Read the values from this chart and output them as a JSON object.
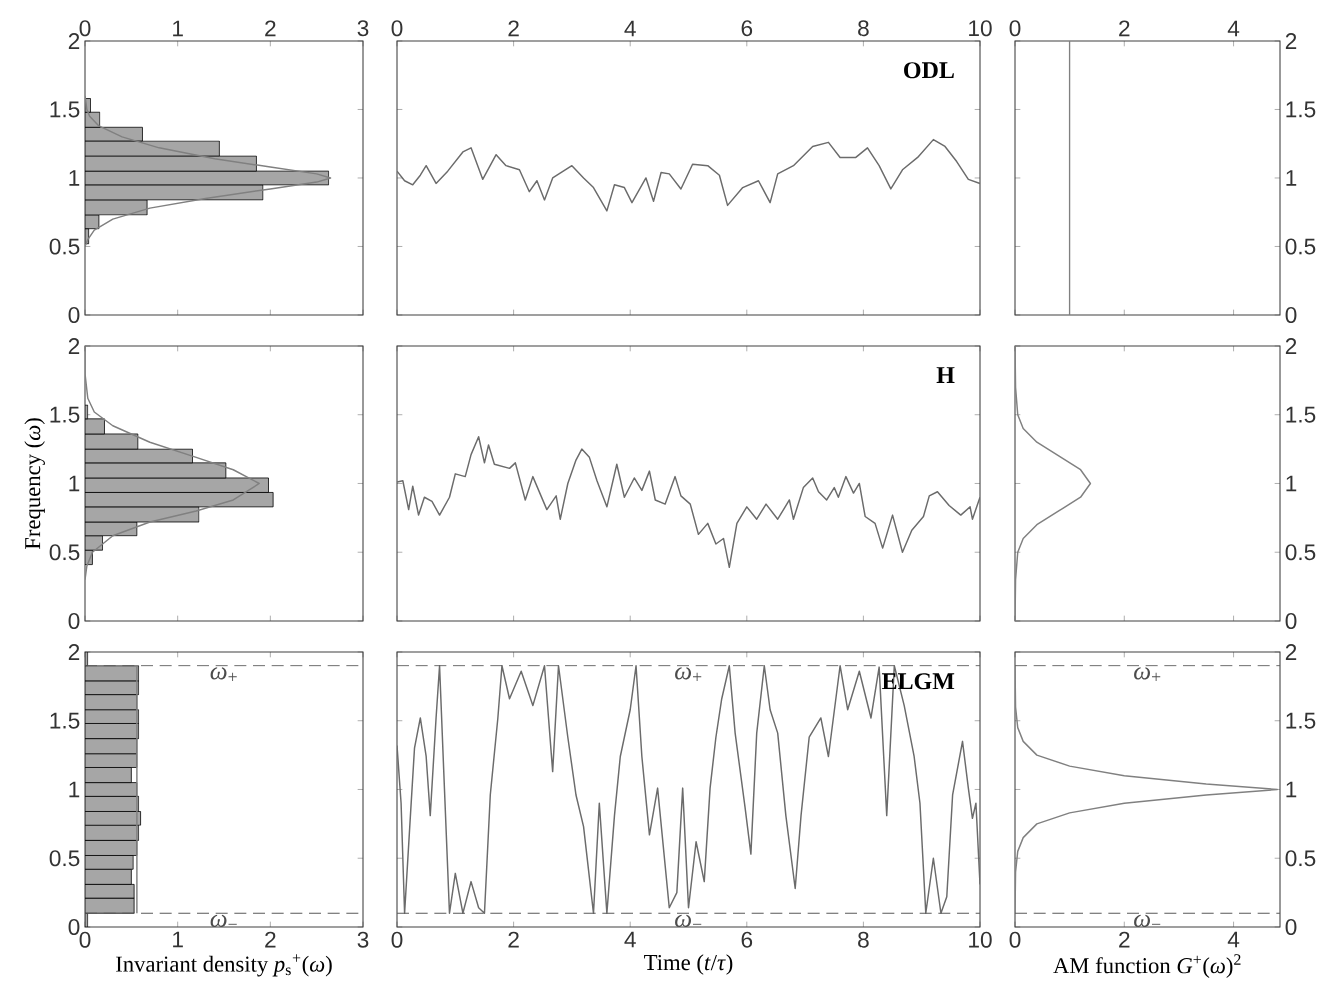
{
  "chart_data": [
    {
      "type": "histogram",
      "orientation": "horizontal",
      "xlim": [
        0,
        3
      ],
      "xticks": [
        0,
        1,
        2,
        3
      ],
      "ylim": [
        0,
        2
      ],
      "yticks": [
        0,
        0.5,
        1,
        1.5,
        2
      ],
      "color": "#a6a6a6",
      "bins": [
        0.52,
        0.63,
        0.73,
        0.84,
        0.95,
        1.05,
        1.16,
        1.27,
        1.37,
        1.48,
        1.58
      ],
      "values": [
        0.04,
        0.15,
        0.67,
        1.92,
        2.63,
        1.85,
        1.45,
        0.62,
        0.16,
        0.06
      ],
      "series": [
        {
          "type": "line",
          "color": "#808080",
          "values": [
            0,
            0.03,
            0.1,
            0.3,
            0.7,
            1.3,
            2.0,
            2.5,
            2.65,
            2.5,
            2.0,
            1.4,
            0.8,
            0.4,
            0.15,
            0.05,
            0.02,
            0
          ],
          "x": [
            0.5,
            0.55,
            0.62,
            0.7,
            0.78,
            0.85,
            0.92,
            0.97,
            1.0,
            1.03,
            1.08,
            1.14,
            1.22,
            1.3,
            1.38,
            1.45,
            1.5,
            1.6
          ]
        }
      ]
    },
    {
      "type": "line",
      "xlim": [
        0,
        10
      ],
      "xticks": [
        0,
        2,
        4,
        6,
        8,
        10
      ],
      "ylim": [
        0,
        2
      ],
      "yticks": [
        0,
        0.5,
        1,
        1.5,
        2
      ],
      "tick_labels": "x",
      "annotations": [
        "**ODL**"
      ],
      "color": "#6b6b6b",
      "x": [
        0,
        0.13,
        0.27,
        0.4,
        0.5,
        0.67,
        0.87,
        1.13,
        1.27,
        1.47,
        1.7,
        1.87,
        2.1,
        2.27,
        2.4,
        2.53,
        2.67,
        3.0,
        3.2,
        3.37,
        3.6,
        3.73,
        3.9,
        4.03,
        4.27,
        4.4,
        4.53,
        4.67,
        4.87,
        5.07,
        5.33,
        5.53,
        5.67,
        5.93,
        6.2,
        6.4,
        6.53,
        6.8,
        7.13,
        7.4,
        7.6,
        7.87,
        8.07,
        8.27,
        8.47,
        8.67,
        8.93,
        9.2,
        9.4,
        9.6,
        9.8,
        10
      ],
      "values": [
        1.05,
        0.98,
        0.95,
        1.02,
        1.09,
        0.96,
        1.05,
        1.19,
        1.22,
        0.99,
        1.17,
        1.09,
        1.06,
        0.9,
        0.98,
        0.84,
        1.0,
        1.09,
        1.0,
        0.93,
        0.76,
        0.95,
        0.93,
        0.82,
        1.0,
        0.83,
        1.04,
        1.03,
        0.92,
        1.1,
        1.09,
        1.02,
        0.8,
        0.93,
        0.98,
        0.82,
        1.03,
        1.09,
        1.23,
        1.26,
        1.15,
        1.15,
        1.22,
        1.09,
        0.92,
        1.06,
        1.15,
        1.28,
        1.23,
        1.12,
        0.99,
        0.96
      ]
    },
    {
      "type": "line",
      "xlim": [
        0,
        4.85
      ],
      "xticks": [
        0,
        2,
        4
      ],
      "ylim": [
        0,
        2
      ],
      "yticks": [
        0,
        0.5,
        1,
        1.5,
        2
      ],
      "series": [
        {
          "color": "#808080",
          "x": [
            1,
            1
          ],
          "values": [
            0,
            2
          ]
        }
      ]
    },
    {
      "type": "histogram",
      "orientation": "horizontal",
      "xlim": [
        0,
        3
      ],
      "xticks": [
        0,
        1,
        2,
        3
      ],
      "ylim": [
        0,
        2
      ],
      "yticks": [
        0,
        0.5,
        1,
        1.5,
        2
      ],
      "tick_labels": "y",
      "ylabel": "Frequency (*ω*)",
      "color": "#a6a6a6",
      "bins": [
        0.41,
        0.515,
        0.62,
        0.72,
        0.83,
        0.935,
        1.04,
        1.15,
        1.25,
        1.36,
        1.47,
        1.57
      ],
      "values": [
        0.08,
        0.19,
        0.56,
        1.23,
        2.03,
        1.98,
        1.52,
        1.16,
        0.57,
        0.21,
        0.03
      ],
      "series": [
        {
          "type": "line",
          "color": "#808080",
          "values": [
            0,
            0.02,
            0.08,
            0.3,
            0.7,
            1.2,
            1.6,
            1.88,
            1.6,
            1.2,
            0.7,
            0.3,
            0.1,
            0.03,
            0,
            0
          ],
          "x": [
            0.3,
            0.4,
            0.5,
            0.62,
            0.72,
            0.8,
            0.88,
            1.0,
            1.1,
            1.19,
            1.3,
            1.42,
            1.52,
            1.62,
            1.8,
            2
          ]
        }
      ]
    },
    {
      "type": "line",
      "xlim": [
        0,
        10
      ],
      "xticks": [
        0,
        2,
        4,
        6,
        8,
        10
      ],
      "ylim": [
        0,
        2
      ],
      "yticks": [
        0,
        0.5,
        1,
        1.5,
        2
      ],
      "tick_labels": false,
      "annotations": [
        "**H**"
      ],
      "color": "#6b6b6b",
      "x": [
        0,
        0.1,
        0.2,
        0.27,
        0.37,
        0.47,
        0.6,
        0.73,
        0.9,
        1.0,
        1.17,
        1.27,
        1.4,
        1.5,
        1.57,
        1.67,
        1.93,
        2.03,
        2.2,
        2.33,
        2.47,
        2.57,
        2.73,
        2.8,
        2.93,
        3.07,
        3.17,
        3.3,
        3.43,
        3.6,
        3.77,
        3.9,
        4.07,
        4.2,
        4.33,
        4.43,
        4.6,
        4.77,
        4.87,
        5.03,
        5.17,
        5.33,
        5.47,
        5.6,
        5.7,
        5.83,
        6.0,
        6.17,
        6.33,
        6.53,
        6.73,
        6.8,
        6.97,
        7.13,
        7.23,
        7.37,
        7.5,
        7.57,
        7.7,
        7.83,
        7.93,
        8.03,
        8.2,
        8.33,
        8.5,
        8.67,
        8.83,
        9.03,
        9.13,
        9.27,
        9.47,
        9.67,
        9.83,
        9.87,
        10
      ],
      "values": [
        1.01,
        1.02,
        0.81,
        0.98,
        0.77,
        0.9,
        0.87,
        0.77,
        0.9,
        1.07,
        1.05,
        1.21,
        1.34,
        1.15,
        1.28,
        1.14,
        1.11,
        1.15,
        0.88,
        1.05,
        0.91,
        0.81,
        0.91,
        0.74,
        1.0,
        1.17,
        1.25,
        1.19,
        1.02,
        0.83,
        1.14,
        0.9,
        1.04,
        0.95,
        1.09,
        0.88,
        0.85,
        1.05,
        0.91,
        0.85,
        0.63,
        0.71,
        0.56,
        0.6,
        0.39,
        0.71,
        0.83,
        0.74,
        0.85,
        0.74,
        0.88,
        0.74,
        0.97,
        1.04,
        0.94,
        0.88,
        0.97,
        0.9,
        1.05,
        0.93,
        1.0,
        0.76,
        0.71,
        0.53,
        0.77,
        0.5,
        0.66,
        0.76,
        0.91,
        0.94,
        0.84,
        0.77,
        0.83,
        0.74,
        0.9
      ]
    },
    {
      "type": "line",
      "xlim": [
        0,
        4.85
      ],
      "xticks": [
        0,
        2,
        4
      ],
      "ylim": [
        0,
        2
      ],
      "yticks": [
        0,
        0.5,
        1,
        1.5,
        2
      ],
      "tick_labels": "y",
      "series": [
        {
          "color": "#808080",
          "x": [
            0,
            0.01,
            0.05,
            0.15,
            0.4,
            0.8,
            1.2,
            1.38,
            1.2,
            0.8,
            0.4,
            0.15,
            0.05,
            0.01,
            0
          ],
          "values": [
            0,
            0.3,
            0.5,
            0.6,
            0.7,
            0.8,
            0.9,
            1.0,
            1.1,
            1.2,
            1.3,
            1.4,
            1.5,
            1.7,
            2
          ]
        }
      ]
    },
    {
      "type": "histogram",
      "orientation": "horizontal",
      "xlim": [
        0,
        3
      ],
      "xticks": [
        0,
        1,
        2,
        3
      ],
      "ylim": [
        0,
        2
      ],
      "yticks": [
        0,
        0.5,
        1,
        1.5,
        2
      ],
      "xlabel": "Invariant density *p*$_{s}$$^{+}$(*ω*)",
      "color": "#a6a6a6",
      "bins": [
        0,
        0.1,
        0.21,
        0.31,
        0.42,
        0.52,
        0.63,
        0.74,
        0.84,
        0.95,
        1.05,
        1.16,
        1.26,
        1.37,
        1.48,
        1.58,
        1.69,
        1.79,
        1.9,
        2.0
      ],
      "values": [
        0.03,
        0.53,
        0.53,
        0.5,
        0.52,
        0.56,
        0.58,
        0.6,
        0.58,
        0.56,
        0.5,
        0.56,
        0.56,
        0.58,
        0.58,
        0.56,
        0.58,
        0.58,
        0.03
      ],
      "series": [
        {
          "type": "line",
          "color": "#808080",
          "values": [
            0.56,
            0.56
          ],
          "x": [
            0.1,
            1.9
          ]
        }
      ],
      "ref_lines": [
        {
          "axis": "y",
          "value": 1.9,
          "label": "*ω*$_{+}$",
          "line_style": "dashed",
          "color": "#595959"
        },
        {
          "axis": "y",
          "value": 0.1,
          "label": "*ω*$_{−}$",
          "line_style": "dashed",
          "color": "#595959"
        }
      ]
    },
    {
      "type": "line",
      "xlim": [
        0,
        10
      ],
      "xticks": [
        0,
        2,
        4,
        6,
        8,
        10
      ],
      "ylim": [
        0,
        2
      ],
      "yticks": [
        0,
        0.5,
        1,
        1.5,
        2
      ],
      "tick_labels": "x",
      "xlabel": "Time (*t*/*τ*)",
      "annotations": [
        "**ELGM**"
      ],
      "color": "#6b6b6b",
      "x": [
        0,
        0.07,
        0.13,
        0.23,
        0.3,
        0.4,
        0.5,
        0.57,
        0.67,
        0.73,
        0.8,
        0.9,
        1.0,
        1.13,
        1.27,
        1.4,
        1.5,
        1.6,
        1.73,
        1.8,
        1.93,
        2.13,
        2.33,
        2.53,
        2.67,
        2.77,
        2.93,
        3.07,
        3.2,
        3.37,
        3.47,
        3.6,
        3.73,
        3.83,
        4.0,
        4.1,
        4.2,
        4.33,
        4.47,
        4.67,
        4.8,
        4.9,
        5.0,
        5.13,
        5.27,
        5.37,
        5.47,
        5.57,
        5.7,
        5.8,
        5.97,
        6.07,
        6.17,
        6.3,
        6.4,
        6.53,
        6.67,
        6.83,
        6.93,
        7.07,
        7.27,
        7.4,
        7.6,
        7.73,
        7.93,
        8.13,
        8.27,
        8.4,
        8.53,
        8.7,
        8.87,
        8.97,
        9.07,
        9.2,
        9.33,
        9.43,
        9.53,
        9.7,
        9.8,
        9.87,
        9.93,
        10
      ],
      "values": [
        1.32,
        0.9,
        0.1,
        0.81,
        1.3,
        1.52,
        1.24,
        0.81,
        1.52,
        1.9,
        1.15,
        0.1,
        0.39,
        0.1,
        0.33,
        0.14,
        0.1,
        0.96,
        1.52,
        1.9,
        1.66,
        1.86,
        1.61,
        1.9,
        1.13,
        1.9,
        1.38,
        0.96,
        0.73,
        0.1,
        0.9,
        0.1,
        0.81,
        1.24,
        1.58,
        1.9,
        1.24,
        0.67,
        1.01,
        0.14,
        0.25,
        1.01,
        0.14,
        0.62,
        0.33,
        1.01,
        1.38,
        1.66,
        1.9,
        1.41,
        0.87,
        0.53,
        1.41,
        1.9,
        1.58,
        1.41,
        0.81,
        0.28,
        0.81,
        1.38,
        1.52,
        1.24,
        1.9,
        1.58,
        1.86,
        1.52,
        1.89,
        0.81,
        1.9,
        1.61,
        1.24,
        0.9,
        0.1,
        0.5,
        0.1,
        0.22,
        0.96,
        1.35,
        1.01,
        0.79,
        0.9,
        0.31
      ],
      "ref_lines": [
        {
          "axis": "y",
          "value": 1.9,
          "label": "*ω*$_{+}$",
          "line_style": "dashed",
          "color": "#595959"
        },
        {
          "axis": "y",
          "value": 0.1,
          "label": "*ω*$_{−}$",
          "line_style": "dashed",
          "color": "#595959"
        }
      ]
    },
    {
      "type": "line",
      "xlim": [
        0,
        4.85
      ],
      "xticks": [
        0,
        2,
        4
      ],
      "ylim": [
        0,
        2
      ],
      "yticks": [
        0,
        0.5,
        1,
        1.5,
        2
      ],
      "xlabel": "AM function *G*$^{+}$(*ω*)$^{2}$",
      "series": [
        {
          "color": "#808080",
          "x": [
            0,
            0.01,
            0.05,
            0.15,
            0.4,
            1.0,
            2.0,
            3.5,
            4.8,
            3.5,
            2.0,
            1.0,
            0.4,
            0.15,
            0.05,
            0.01,
            0
          ],
          "values": [
            0.1,
            0.4,
            0.55,
            0.65,
            0.75,
            0.83,
            0.9,
            0.96,
            1.0,
            1.04,
            1.1,
            1.17,
            1.25,
            1.35,
            1.45,
            1.6,
            1.9
          ]
        }
      ],
      "ref_lines": [
        {
          "axis": "y",
          "value": 1.9,
          "label": "*ω*$_{+}$",
          "line_style": "dashed",
          "color": "#595959"
        },
        {
          "axis": "y",
          "value": 0.1,
          "label": "*ω*$_{−}$",
          "line_style": "dashed",
          "color": "#595959"
        }
      ]
    }
  ]
}
